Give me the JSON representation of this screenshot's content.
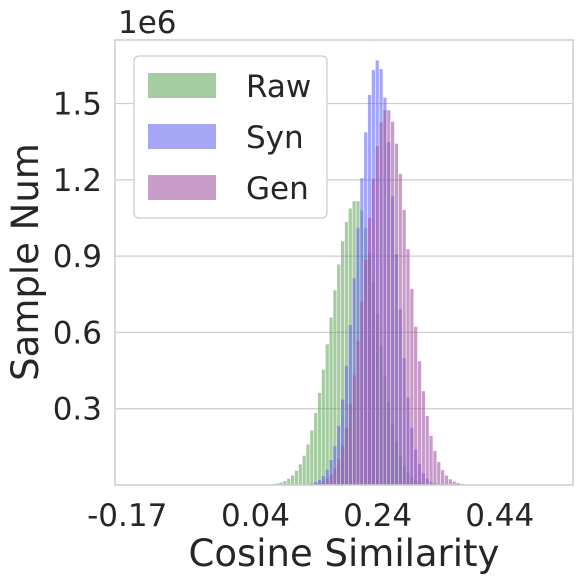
{
  "chart_data": {
    "type": "bar",
    "xlabel": "Cosine Similarity",
    "ylabel": "Sample Num",
    "y_offset_label": "1e6",
    "xlim": [
      -0.19,
      0.56
    ],
    "ylim": [
      0,
      1750000
    ],
    "x_ticks": [
      -0.17,
      0.04,
      0.24,
      0.44
    ],
    "x_tick_labels": [
      "-0.17",
      "0.04",
      "0.24",
      "0.44"
    ],
    "y_ticks": [
      300000,
      600000,
      900000,
      1200000,
      1500000
    ],
    "y_tick_labels": [
      "0.3",
      "0.6",
      "0.9",
      "1.2",
      "1.5"
    ],
    "grid": "horizontal",
    "legend_position": "top-left",
    "series": [
      {
        "name": "Raw",
        "color": "#6aaa64",
        "opacity": 0.6,
        "peak_x": 0.205,
        "peak_value": 1120000,
        "sigma_left": 0.04,
        "sigma_right": 0.034
      },
      {
        "name": "Syn",
        "color": "#6b6bf0",
        "opacity": 0.6,
        "peak_x": 0.24,
        "peak_value": 1670000,
        "sigma_left": 0.032,
        "sigma_right": 0.028
      },
      {
        "name": "Gen",
        "color": "#a45aa3",
        "opacity": 0.6,
        "peak_x": 0.255,
        "peak_value": 1480000,
        "sigma_left": 0.034,
        "sigma_right": 0.036
      }
    ]
  }
}
